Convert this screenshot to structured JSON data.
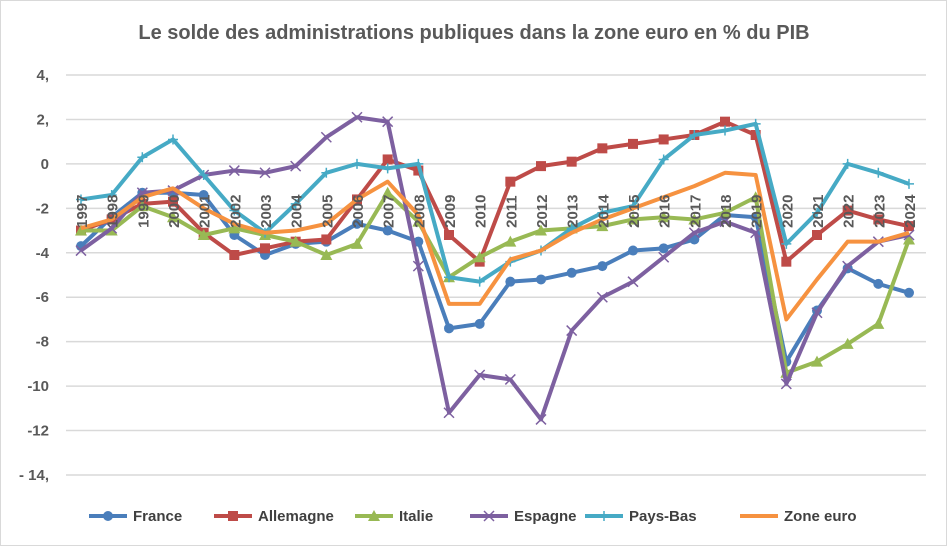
{
  "chart_data": {
    "type": "line",
    "title": "Le solde des administrations publiques dans la zone euro en % du PIB",
    "xlabel": "",
    "ylabel": "",
    "ylim": [
      -14,
      4
    ],
    "grid": true,
    "legend_position": "bottom",
    "y_tick_labels": [
      "4,",
      "2,",
      "0",
      "-2",
      "-4",
      "-6",
      "-8",
      "-10",
      "-12",
      "- 14,"
    ],
    "y_tick_values": [
      4,
      2,
      0,
      -2,
      -4,
      -6,
      -8,
      -10,
      -12,
      -14
    ],
    "x": [
      "1997",
      "1998",
      "1999",
      "2000",
      "2001",
      "2002",
      "2003",
      "2004",
      "2005",
      "2006",
      "2007",
      "2008",
      "2009",
      "2010",
      "2011",
      "2012",
      "2013",
      "2014",
      "2015",
      "2016",
      "2017",
      "2018",
      "2019",
      "2020",
      "2021",
      "2022",
      "2023",
      "2024"
    ],
    "series": [
      {
        "name": "France",
        "color": "#4a7ebb",
        "marker": "circle",
        "values": [
          -3.7,
          -2.4,
          -1.3,
          -1.3,
          -1.4,
          -3.2,
          -4.1,
          -3.6,
          -3.5,
          -2.7,
          -3.0,
          -3.5,
          -7.4,
          -7.2,
          -5.3,
          -5.2,
          -4.9,
          -4.6,
          -3.9,
          -3.8,
          -3.4,
          -2.3,
          -2.4,
          -8.9,
          -6.6,
          -4.7,
          -5.4,
          -5.8
        ]
      },
      {
        "name": "Allemagne",
        "color": "#be4b48",
        "marker": "square",
        "values": [
          -3.0,
          -2.5,
          -1.8,
          -1.7,
          -3.1,
          -4.1,
          -3.8,
          -3.5,
          -3.4,
          -1.6,
          0.2,
          -0.3,
          -3.2,
          -4.4,
          -0.8,
          -0.1,
          0.1,
          0.7,
          0.9,
          1.1,
          1.3,
          1.9,
          1.3,
          -4.4,
          -3.2,
          -2.1,
          -2.5,
          -2.8
        ]
      },
      {
        "name": "Italie",
        "color": "#98b954",
        "marker": "triangle",
        "values": [
          -3.0,
          -3.0,
          -1.9,
          -2.4,
          -3.2,
          -2.9,
          -3.2,
          -3.5,
          -4.1,
          -3.6,
          -1.3,
          -2.6,
          -5.1,
          -4.2,
          -3.5,
          -3.0,
          -2.9,
          -2.8,
          -2.5,
          -2.4,
          -2.5,
          -2.2,
          -1.5,
          -9.4,
          -8.9,
          -8.1,
          -7.2,
          -3.4
        ]
      },
      {
        "name": "Espagne",
        "color": "#7d60a0",
        "marker": "x",
        "values": [
          -3.9,
          -2.9,
          -1.3,
          -1.2,
          -0.5,
          -0.3,
          -0.4,
          -0.1,
          1.2,
          2.1,
          1.9,
          -4.6,
          -11.2,
          -9.5,
          -9.7,
          -11.5,
          -7.5,
          -6.0,
          -5.3,
          -4.2,
          -3.1,
          -2.6,
          -3.1,
          -9.9,
          -6.7,
          -4.6,
          -3.5,
          -3.2
        ]
      },
      {
        "name": "Pays-Bas",
        "color": "#46aac5",
        "marker": "plus",
        "values": [
          -1.6,
          -1.4,
          0.3,
          1.1,
          -0.5,
          -2.1,
          -3.1,
          -1.8,
          -0.4,
          0.0,
          -0.2,
          0.0,
          -5.1,
          -5.3,
          -4.4,
          -3.9,
          -2.9,
          -2.2,
          -1.9,
          0.2,
          1.3,
          1.5,
          1.8,
          -3.6,
          -2.2,
          0.0,
          -0.4,
          -0.9
        ]
      },
      {
        "name": "Zone euro",
        "color": "#f69240",
        "marker": "none",
        "values": [
          -2.9,
          -2.5,
          -1.5,
          -1.1,
          -2.0,
          -2.7,
          -3.1,
          -3.0,
          -2.7,
          -1.6,
          -0.8,
          -2.3,
          -6.3,
          -6.3,
          -4.3,
          -3.9,
          -3.1,
          -2.5,
          -2.0,
          -1.5,
          -1.0,
          -0.4,
          -0.5,
          -7.0,
          -5.2,
          -3.5,
          -3.5,
          -3.1
        ]
      }
    ]
  }
}
